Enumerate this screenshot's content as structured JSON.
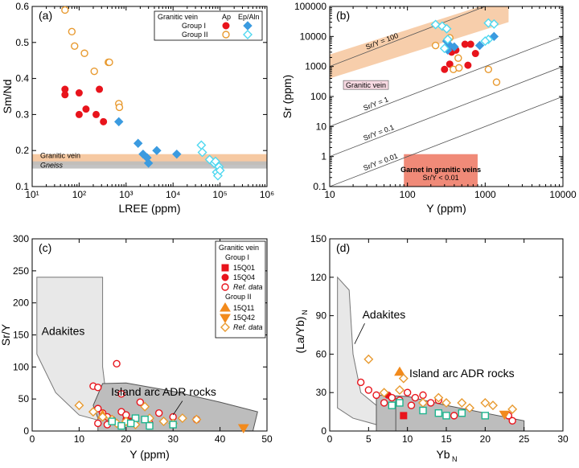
{
  "colors": {
    "groupI": "#e8141c",
    "groupII": "#e89a30",
    "ep": "#3b9be0",
    "epOpen": "#4fd8f0",
    "teal": "#1fb58f",
    "granitic_band": "#f6c9a2",
    "gneiss_band": "#bdbdbd",
    "adakite_fill": "#e8e8e8",
    "arc_fill": "#bdbdbd",
    "garnet_box": "#f08a78"
  },
  "chart_data": [
    {
      "panel": "(a)",
      "type": "scatter",
      "xlabel": "LREE (ppm)",
      "ylabel": "Sm/Nd",
      "xscale": "log",
      "xlim": [
        10,
        1000000
      ],
      "ylim": [
        0.1,
        0.6
      ],
      "x_ticks": [
        10,
        100,
        1000,
        10000,
        100000,
        1000000
      ],
      "x_tick_labels": [
        "10¹",
        "10²",
        "10³",
        "10⁴",
        "10⁵",
        "10⁶"
      ],
      "y_ticks": [
        0.1,
        0.2,
        0.3,
        0.4,
        0.5,
        0.6
      ],
      "y_tick_labels": [
        "0.1",
        "0.2",
        "0.3",
        "0.4",
        "0.5",
        "0.6"
      ],
      "bands": [
        {
          "label": "Granitic vein",
          "y0": 0.16,
          "y1": 0.19,
          "color": "#f6c9a2"
        },
        {
          "label": "Gneiss",
          "y0": 0.15,
          "y1": 0.17,
          "color": "#bdbdbd"
        }
      ],
      "legend": {
        "title": "Granitic vein",
        "col1": "Ap",
        "col2": "Ep/Aln",
        "rows": [
          "Group I",
          "Group II"
        ]
      },
      "series": [
        {
          "name": "Group I Ap",
          "marker": "circle",
          "filled": true,
          "color": "#e8141c",
          "points": [
            [
              50,
              0.37
            ],
            [
              50,
              0.355
            ],
            [
              100,
              0.36
            ],
            [
              100,
              0.3
            ],
            [
              140,
              0.315
            ],
            [
              230,
              0.3
            ],
            [
              270,
              0.37
            ],
            [
              330,
              0.28
            ]
          ]
        },
        {
          "name": "Group II Ap",
          "marker": "circle",
          "filled": false,
          "color": "#e89a30",
          "points": [
            [
              50,
              0.59
            ],
            [
              70,
              0.53
            ],
            [
              80,
              0.49
            ],
            [
              130,
              0.47
            ],
            [
              210,
              0.42
            ],
            [
              420,
              0.445
            ],
            [
              440,
              0.445
            ],
            [
              700,
              0.33
            ],
            [
              720,
              0.32
            ]
          ]
        },
        {
          "name": "Group I Ep/Aln",
          "marker": "diamond",
          "filled": true,
          "color": "#3b9be0",
          "points": [
            [
              700,
              0.28
            ],
            [
              1800,
              0.22
            ],
            [
              2300,
              0.19
            ],
            [
              2800,
              0.18
            ],
            [
              3000,
              0.165
            ],
            [
              4500,
              0.2
            ],
            [
              12000,
              0.19
            ]
          ]
        },
        {
          "name": "Group II Ep/Aln",
          "marker": "diamond",
          "filled": false,
          "color": "#4fd8f0",
          "points": [
            [
              40000,
              0.215
            ],
            [
              42000,
              0.195
            ],
            [
              60000,
              0.175
            ],
            [
              75000,
              0.165
            ],
            [
              80000,
              0.17
            ],
            [
              85000,
              0.14
            ],
            [
              90000,
              0.13
            ],
            [
              95000,
              0.155
            ],
            [
              100000,
              0.145
            ]
          ]
        }
      ]
    },
    {
      "panel": "(b)",
      "type": "scatter",
      "xlabel": "Y (ppm)",
      "ylabel": "Sr (ppm)",
      "xscale": "log",
      "yscale": "log",
      "xlim": [
        10,
        10000
      ],
      "ylim": [
        0.1,
        100000
      ],
      "x_ticks": [
        10,
        100,
        1000,
        10000
      ],
      "x_tick_labels": [
        "10",
        "100",
        "1000",
        "10000"
      ],
      "y_ticks": [
        0.1,
        1,
        10,
        100,
        1000,
        10000,
        100000
      ],
      "y_tick_labels": [
        "0.1",
        "1",
        "10",
        "100",
        "1000",
        "10000",
        "100000"
      ],
      "ratio_lines": [
        {
          "label": "Sr/Y = 100",
          "ratio": 100
        },
        {
          "label": "Sr/Y = 1",
          "ratio": 1
        },
        {
          "label": "Sr/Y = 0.1",
          "ratio": 0.1
        },
        {
          "label": "Sr/Y = 0.01",
          "ratio": 0.01
        }
      ],
      "band_label": "Granitic vein",
      "garnet_box": {
        "line1": "Garnet in granitic veins",
        "line2": "Sr/Y < 0.01",
        "x0": 90,
        "x1": 800
      },
      "series": [
        {
          "name": "Group I Ap",
          "marker": "circle",
          "filled": true,
          "color": "#e8141c",
          "points": [
            [
              300,
              800
            ],
            [
              350,
              1200
            ],
            [
              370,
              3000
            ],
            [
              420,
              3500
            ],
            [
              550,
              5500
            ],
            [
              650,
              5500
            ],
            [
              600,
              1100
            ],
            [
              750,
              2700
            ]
          ]
        },
        {
          "name": "Group II Ap",
          "marker": "circle",
          "filled": false,
          "color": "#e89a30",
          "points": [
            [
              230,
              5000
            ],
            [
              350,
              9000
            ],
            [
              390,
              800
            ],
            [
              450,
              1900
            ],
            [
              460,
              900
            ],
            [
              1100,
              800
            ],
            [
              1400,
              300
            ]
          ]
        },
        {
          "name": "Group I Ep/Aln",
          "marker": "diamond",
          "filled": true,
          "color": "#3b9be0",
          "points": [
            [
              320,
              7000
            ],
            [
              330,
              3500
            ],
            [
              350,
              5000
            ],
            [
              400,
              4500
            ],
            [
              850,
              5000
            ],
            [
              1300,
              10000
            ]
          ]
        },
        {
          "name": "Group II Ep/Aln",
          "marker": "diamond",
          "filled": false,
          "color": "#4fd8f0",
          "points": [
            [
              230,
              25000
            ],
            [
              280,
              22000
            ],
            [
              320,
              18000
            ],
            [
              300,
              4000
            ],
            [
              330,
              8000
            ],
            [
              1100,
              28000
            ],
            [
              1300,
              26000
            ],
            [
              1100,
              8000
            ],
            [
              1000,
              7000
            ]
          ]
        }
      ]
    },
    {
      "panel": "(c)",
      "type": "scatter",
      "xlabel": "Y (ppm)",
      "ylabel": "Sr/Y",
      "xlim": [
        0,
        50
      ],
      "ylim": [
        0,
        300
      ],
      "x_ticks": [
        0,
        10,
        20,
        30,
        40,
        50
      ],
      "y_ticks": [
        0,
        50,
        100,
        150,
        200,
        250,
        300
      ],
      "region_labels": [
        "Adakites",
        "Island arc ADR rocks"
      ],
      "legend": {
        "title": "Granitic vein",
        "group1": "Group I",
        "group1_items": [
          "15Q01",
          "15Q04",
          "Ref. data"
        ],
        "group2": "Group II",
        "group2_items": [
          "15Q11",
          "15Q42",
          "Ref. data"
        ]
      },
      "series": [
        {
          "name": "15Q01",
          "marker": "square",
          "filled": true,
          "color": "#e8141c",
          "points": [
            [
              21,
              15
            ]
          ]
        },
        {
          "name": "15Q04",
          "marker": "circle",
          "filled": true,
          "color": "#e8141c",
          "points": [
            [
              20,
              18
            ]
          ]
        },
        {
          "name": "Group I Ref. data",
          "marker": "circle",
          "filled": false,
          "color": "#e8141c",
          "points": [
            [
              13,
              70
            ],
            [
              14,
              68
            ],
            [
              14,
              35
            ],
            [
              15,
              28
            ],
            [
              16,
              22
            ],
            [
              17,
              18
            ],
            [
              18,
              105
            ],
            [
              19,
              58
            ],
            [
              19,
              30
            ],
            [
              20,
              25
            ],
            [
              22,
              20
            ],
            [
              23,
              45
            ],
            [
              25,
              12
            ],
            [
              27,
              28
            ],
            [
              30,
              22
            ],
            [
              35,
              18
            ],
            [
              14,
              12
            ],
            [
              16,
              10
            ]
          ]
        },
        {
          "name": "15Q11",
          "marker": "triangle-up",
          "filled": true,
          "color": "#f28a1c",
          "points": [
            [
              15,
              25
            ]
          ]
        },
        {
          "name": "15Q42",
          "marker": "triangle-down",
          "filled": true,
          "color": "#f28a1c",
          "points": [
            [
              45,
              5
            ]
          ]
        },
        {
          "name": "Group II Ref. data",
          "marker": "diamond",
          "filled": false,
          "color": "#e89a30",
          "points": [
            [
              10,
              40
            ],
            [
              13,
              30
            ],
            [
              15,
              22
            ],
            [
              17,
              18
            ],
            [
              20,
              15
            ],
            [
              24,
              38
            ],
            [
              25,
              20
            ],
            [
              28,
              15
            ],
            [
              30,
              12
            ],
            [
              32,
              20
            ],
            [
              35,
              18
            ],
            [
              22,
              10
            ],
            [
              18,
              12
            ]
          ]
        },
        {
          "name": "Teal open squares",
          "marker": "square",
          "filled": false,
          "color": "#1fb58f",
          "points": [
            [
              17,
              15
            ],
            [
              19,
              8
            ],
            [
              22,
              20
            ],
            [
              24,
              18
            ],
            [
              25,
              8
            ],
            [
              30,
              10
            ],
            [
              21,
              12
            ]
          ]
        }
      ]
    },
    {
      "panel": "(d)",
      "type": "scatter",
      "xlabel": "Yb",
      "xlabel_sub": "N",
      "ylabel": "(La/Yb)",
      "ylabel_sub": "N",
      "xlim": [
        0,
        30
      ],
      "ylim": [
        0,
        150
      ],
      "x_ticks": [
        0,
        5,
        10,
        15,
        20,
        25,
        30
      ],
      "y_ticks": [
        0,
        30,
        60,
        90,
        120,
        150
      ],
      "region_labels": [
        "Adakites",
        "Island arc ADR rocks"
      ],
      "series": [
        {
          "name": "Group I filled",
          "marker": "square",
          "filled": true,
          "color": "#e8141c",
          "points": [
            [
              9.5,
              12
            ]
          ]
        },
        {
          "name": "Group I circle",
          "marker": "circle",
          "filled": true,
          "color": "#e8141c",
          "points": [
            [
              7.5,
              28
            ]
          ]
        },
        {
          "name": "Group I Ref. data",
          "marker": "circle",
          "filled": false,
          "color": "#e8141c",
          "points": [
            [
              4,
              38
            ],
            [
              5,
              32
            ],
            [
              6,
              28
            ],
            [
              7,
              22
            ],
            [
              8,
              26
            ],
            [
              9,
              24
            ],
            [
              10,
              30
            ],
            [
              10.5,
              20
            ],
            [
              11,
              26
            ],
            [
              12,
              28
            ],
            [
              13,
              22
            ],
            [
              14,
              24
            ],
            [
              16,
              12
            ],
            [
              23,
              12
            ],
            [
              23.5,
              8
            ]
          ]
        },
        {
          "name": "15Q11",
          "marker": "triangle-up",
          "filled": true,
          "color": "#f28a1c",
          "points": [
            [
              9,
              46
            ]
          ]
        },
        {
          "name": "15Q42",
          "marker": "triangle-down",
          "filled": true,
          "color": "#f28a1c",
          "points": [
            [
              22.5,
              13
            ]
          ]
        },
        {
          "name": "Group II Ref. data",
          "marker": "diamond",
          "filled": false,
          "color": "#e89a30",
          "points": [
            [
              5,
              56
            ],
            [
              7,
              30
            ],
            [
              9,
              32
            ],
            [
              9.5,
              41
            ],
            [
              12,
              22
            ],
            [
              14,
              26
            ],
            [
              15,
              22
            ],
            [
              17,
              22
            ],
            [
              18,
              18
            ],
            [
              20,
              22
            ],
            [
              21,
              20
            ],
            [
              23.5,
              17
            ]
          ]
        },
        {
          "name": "Teal open squares",
          "marker": "square",
          "filled": false,
          "color": "#1fb58f",
          "points": [
            [
              8,
              20
            ],
            [
              9,
              22
            ],
            [
              12,
              16
            ],
            [
              14,
              14
            ],
            [
              15,
              12
            ],
            [
              17,
              14
            ],
            [
              20,
              12
            ]
          ]
        }
      ]
    }
  ]
}
